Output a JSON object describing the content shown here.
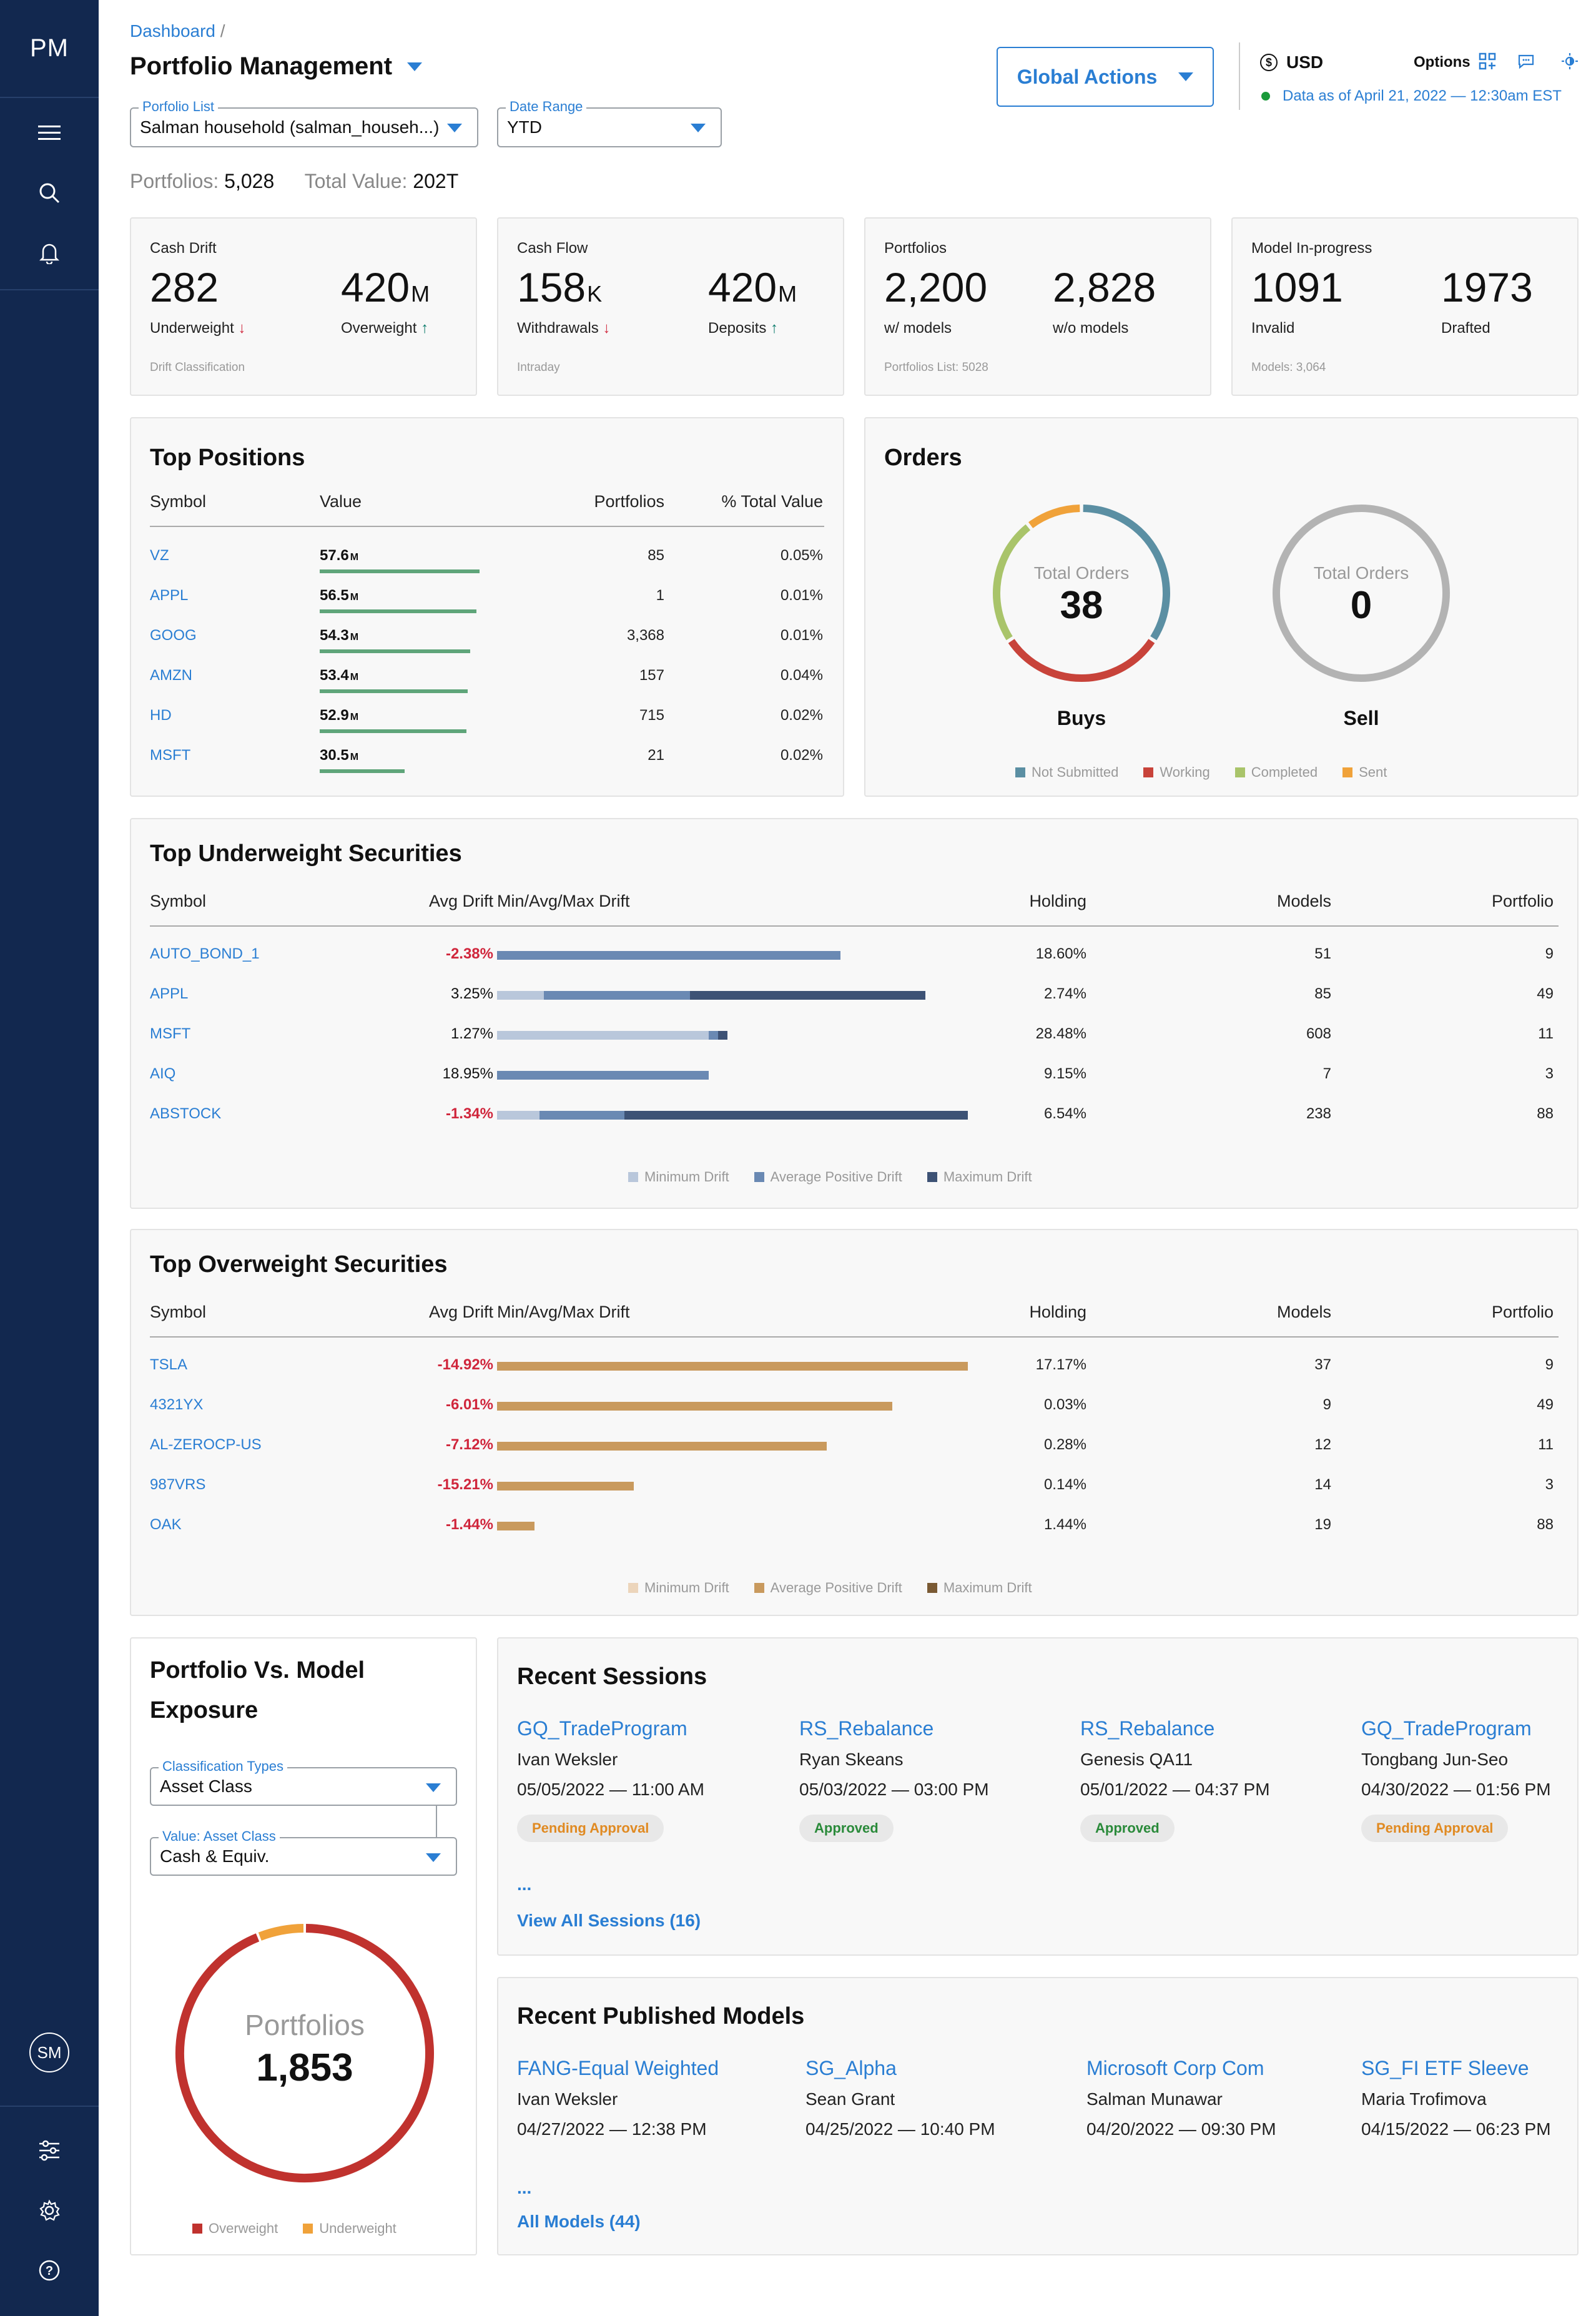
{
  "app": {
    "logo": "PM"
  },
  "user": {
    "initials": "SM"
  },
  "breadcrumb": {
    "root": "Dashboard",
    "sep": "/"
  },
  "page_title": "Portfolio Management",
  "filters": {
    "portfolio_list": {
      "label": "Porfolio List",
      "value": "Salman household (salman_househ...)"
    },
    "date_range": {
      "label": "Date Range",
      "value": "YTD"
    }
  },
  "summary": {
    "portfolios_label": "Portfolios:",
    "portfolios_value": "5,028",
    "total_value_label": "Total Value:",
    "total_value_value": "202T"
  },
  "global_actions_label": "Global Actions",
  "currency": {
    "symbol": "$",
    "code": "USD"
  },
  "options_label": "Options",
  "data_as_of": "Data as of April 21, 2022 — 12:30am EST",
  "kpis": [
    {
      "title": "Cash Drift",
      "a_val": "282",
      "a_unit": "",
      "a_label": "Underweight",
      "a_arrow": "↓",
      "b_val": "420",
      "b_unit": "M",
      "b_label": "Overweight",
      "b_arrow": "↑",
      "foot": "Drift Classification"
    },
    {
      "title": "Cash Flow",
      "a_val": "158",
      "a_unit": "K",
      "a_label": "Withdrawals",
      "a_arrow": "↓",
      "b_val": "420",
      "b_unit": "M",
      "b_label": "Deposits",
      "b_arrow": "↑",
      "foot": "Intraday"
    },
    {
      "title": "Portfolios",
      "a_val": "2,200",
      "a_unit": "",
      "a_label": "w/ models",
      "a_arrow": "",
      "b_val": "2,828",
      "b_unit": "",
      "b_label": "w/o models",
      "b_arrow": "",
      "foot": "Portfolios List: 5028"
    },
    {
      "title": "Model In-progress",
      "a_val": "1091",
      "a_unit": "",
      "a_label": "Invalid",
      "a_arrow": "",
      "b_val": "1973",
      "b_unit": "",
      "b_label": "Drafted",
      "b_arrow": "",
      "foot": "Models: 3,064"
    }
  ],
  "top_positions": {
    "title": "Top Positions",
    "headers": [
      "Symbol",
      "Value",
      "Portfolios",
      "% Total Value"
    ],
    "rows": [
      {
        "symbol": "VZ",
        "value": "57.6",
        "unit": "M",
        "bar": 57.6,
        "portfolios": "85",
        "pct": "0.05%"
      },
      {
        "symbol": "APPL",
        "value": "56.5",
        "unit": "M",
        "bar": 56.5,
        "portfolios": "1",
        "pct": "0.01%"
      },
      {
        "symbol": "GOOG",
        "value": "54.3",
        "unit": "M",
        "bar": 54.3,
        "portfolios": "3,368",
        "pct": "0.01%"
      },
      {
        "symbol": "AMZN",
        "value": "53.4",
        "unit": "M",
        "bar": 53.4,
        "portfolios": "157",
        "pct": "0.04%"
      },
      {
        "symbol": "HD",
        "value": "52.9",
        "unit": "M",
        "bar": 52.9,
        "portfolios": "715",
        "pct": "0.02%"
      },
      {
        "symbol": "MSFT",
        "value": "30.5",
        "unit": "M",
        "bar": 30.5,
        "portfolios": "21",
        "pct": "0.02%"
      }
    ],
    "bar_color": "#5fa57a"
  },
  "orders": {
    "title": "Orders",
    "buys": {
      "center_label": "Total Orders",
      "total": "38",
      "label": "Buys",
      "segments": [
        {
          "name": "Not Submitted",
          "value": 13
        },
        {
          "name": "Working",
          "value": 12
        },
        {
          "name": "Completed",
          "value": 9
        },
        {
          "name": "Sent",
          "value": 4
        }
      ]
    },
    "sell": {
      "center_label": "Total Orders",
      "total": "0",
      "label": "Sell"
    },
    "legend": [
      {
        "name": "Not Submitted",
        "color": "#5b8fa3"
      },
      {
        "name": "Working",
        "color": "#c8433a"
      },
      {
        "name": "Completed",
        "color": "#a9c46a"
      },
      {
        "name": "Sent",
        "color": "#f0a23a"
      }
    ]
  },
  "underweight": {
    "title": "Top Underweight Securities",
    "headers": [
      "Symbol",
      "Avg Drift",
      "Min/Avg/Max Drift",
      "Holding",
      "Models",
      "Portfolio"
    ],
    "rows": [
      {
        "symbol": "AUTO_BOND_1",
        "avg": "-2.38%",
        "neg": true,
        "min": 0,
        "avgd": 0.73,
        "max": 0,
        "holding": "18.60%",
        "models": "51",
        "portfolio": "9"
      },
      {
        "symbol": "APPL",
        "avg": "3.25%",
        "neg": false,
        "min": 0.1,
        "avgd": 0.41,
        "max": 0.91,
        "holding": "2.74%",
        "models": "85",
        "portfolio": "49"
      },
      {
        "symbol": "MSFT",
        "avg": "1.27%",
        "neg": false,
        "min": 0.45,
        "avgd": 0.47,
        "max": 0.49,
        "holding": "28.48%",
        "models": "608",
        "portfolio": "11"
      },
      {
        "symbol": "AIQ",
        "avg": "18.95%",
        "neg": false,
        "min": 0,
        "avgd": 0.45,
        "max": 0,
        "holding": "9.15%",
        "models": "7",
        "portfolio": "3"
      },
      {
        "symbol": "ABSTOCK",
        "avg": "-1.34%",
        "neg": true,
        "min": 0.09,
        "avgd": 0.27,
        "max": 1.0,
        "holding": "6.54%",
        "models": "238",
        "portfolio": "88"
      }
    ],
    "legend": [
      {
        "name": "Minimum Drift",
        "color": "#b9c7db"
      },
      {
        "name": "Average Positive Drift",
        "color": "#6a89b3"
      },
      {
        "name": "Maximum Drift",
        "color": "#3d5275"
      }
    ]
  },
  "overweight": {
    "title": "Top Overweight Securities",
    "headers": [
      "Symbol",
      "Avg Drift",
      "Min/Avg/Max Drift",
      "Holding",
      "Models",
      "Portfolio"
    ],
    "rows": [
      {
        "symbol": "TSLA",
        "avg": "-14.92%",
        "neg": true,
        "avgd": 1.0,
        "holding": "17.17%",
        "models": "37",
        "portfolio": "9"
      },
      {
        "symbol": "4321YX",
        "avg": "-6.01%",
        "neg": true,
        "avgd": 0.84,
        "holding": "0.03%",
        "models": "9",
        "portfolio": "49"
      },
      {
        "symbol": "AL-ZEROCP-US",
        "avg": "-7.12%",
        "neg": true,
        "avgd": 0.7,
        "holding": "0.28%",
        "models": "12",
        "portfolio": "11"
      },
      {
        "symbol": "987VRS",
        "avg": "-15.21%",
        "neg": true,
        "avgd": 0.29,
        "holding": "0.14%",
        "models": "14",
        "portfolio": "3"
      },
      {
        "symbol": "OAK",
        "avg": "-1.44%",
        "neg": true,
        "avgd": 0.08,
        "holding": "1.44%",
        "models": "19",
        "portfolio": "88"
      }
    ],
    "legend": [
      {
        "name": "Minimum Drift",
        "color": "#ecd5bb"
      },
      {
        "name": "Average Positive Drift",
        "color": "#c99a5e"
      },
      {
        "name": "Maximum Drift",
        "color": "#7a5a34"
      }
    ]
  },
  "exposure": {
    "title_1": "Portfolio Vs. Model",
    "title_2": "Exposure",
    "classification": {
      "label": "Classification Types",
      "value": "Asset Class"
    },
    "value_field": {
      "label": "Value: Asset Class",
      "value": "Cash & Equiv."
    },
    "donut": {
      "label": "Portfolios",
      "total": "1,853",
      "overweight_fraction": 0.94,
      "underweight_fraction": 0.06
    },
    "legend": [
      {
        "name": "Overweight",
        "color": "#c0322e"
      },
      {
        "name": "Underweight",
        "color": "#f0a23a"
      }
    ]
  },
  "sessions": {
    "title": "Recent Sessions",
    "items": [
      {
        "name": "GQ_TradeProgram",
        "user": "Ivan Weksler",
        "date": "05/05/2022 — 11:00 AM",
        "status": "Pending Approval",
        "state": "pending"
      },
      {
        "name": "RS_Rebalance",
        "user": "Ryan Skeans",
        "date": "05/03/2022 — 03:00 PM",
        "status": "Approved",
        "state": "approved"
      },
      {
        "name": "RS_Rebalance",
        "user": "Genesis QA11",
        "date": "05/01/2022 — 04:37 PM",
        "status": "Approved",
        "state": "approved"
      },
      {
        "name": "GQ_TradeProgram",
        "user": "Tongbang Jun-Seo",
        "date": "04/30/2022 — 01:56 PM",
        "status": "Pending Approval",
        "state": "pending"
      }
    ],
    "ellipsis": "...",
    "view_all": "View All Sessions (16)"
  },
  "models": {
    "title": "Recent Published Models",
    "items": [
      {
        "name": "FANG-Equal Weighted",
        "user": "Ivan Weksler",
        "date": "04/27/2022 — 12:38 PM"
      },
      {
        "name": "SG_Alpha",
        "user": "Sean Grant",
        "date": "04/25/2022  — 10:40 PM"
      },
      {
        "name": "Microsoft Corp Com",
        "user": "Salman Munawar",
        "date": "04/20/2022 — 09:30 PM"
      },
      {
        "name": "SG_FI ETF Sleeve",
        "user": "Maria Trofimova",
        "date": "04/15/2022 — 06:23 PM"
      }
    ],
    "ellipsis": "...",
    "view_all": "All Models (44)"
  }
}
